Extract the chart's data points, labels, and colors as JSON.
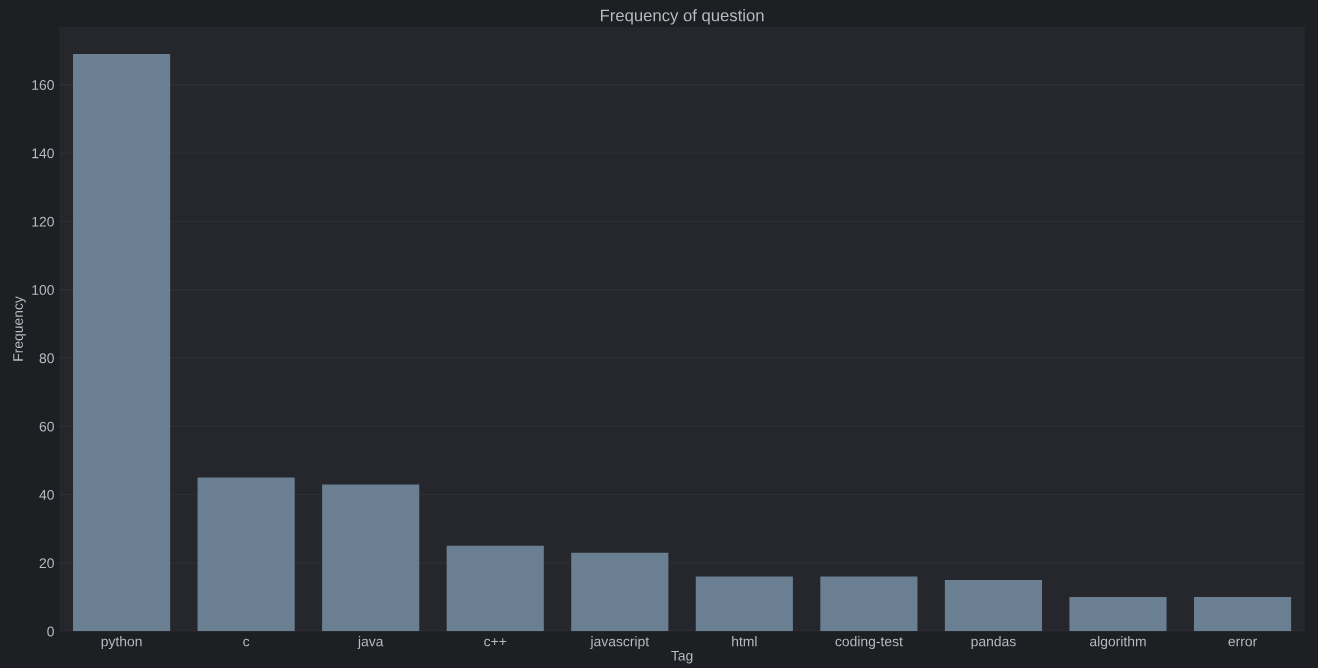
{
  "chart_data": {
    "type": "bar",
    "title": "Frequency of question",
    "xlabel": "Tag",
    "ylabel": "Frequency",
    "categories": [
      "python",
      "c",
      "java",
      "c++",
      "javascript",
      "html",
      "coding-test",
      "pandas",
      "algorithm",
      "error"
    ],
    "values": [
      169,
      45,
      43,
      25,
      23,
      16,
      16,
      15,
      10,
      10
    ],
    "color": "#6a7f91",
    "ylim": [
      0,
      177
    ],
    "yticks": [
      0,
      20,
      40,
      60,
      80,
      100,
      120,
      140,
      160
    ],
    "grid": "y",
    "legend": false
  }
}
